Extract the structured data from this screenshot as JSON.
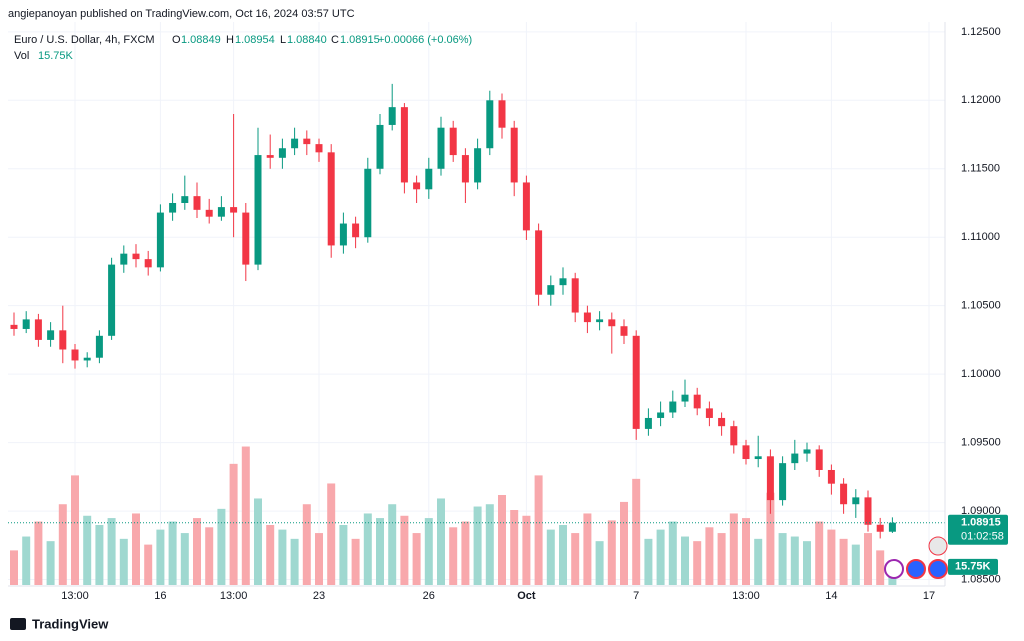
{
  "header": {
    "title": "angiepanoyan published on TradingView.com, Oct 16, 2024 03:57 UTC"
  },
  "footer": {
    "brand": "TradingView"
  },
  "chart_data": {
    "type": "candlestick",
    "symbol": "Euro / U.S. Dollar, 4h, FXCM",
    "legend": {
      "o": "O",
      "o_value": "1.08849",
      "h": "H",
      "h_value": "1.08954",
      "l": "L",
      "l_value": "1.08840",
      "c": "C",
      "c_value": "1.08915",
      "change": "+0.00066 (+0.06%)",
      "vol": "Vol",
      "vol_value": "15.75K"
    },
    "last_price_label": "1.08915",
    "countdown": "01:02:58",
    "volume_label": "15.75K",
    "up_color": "#089981",
    "down_color": "#f23645",
    "volume_up_color": "#9fd8d0",
    "volume_down_color": "#f8a8ac",
    "ylim": [
      1.0846,
      1.1255
    ],
    "yticks": [
      {
        "value": 1.085,
        "label": "1.08500"
      },
      {
        "value": 1.09,
        "label": "1.09000"
      },
      {
        "value": 1.095,
        "label": "1.09500"
      },
      {
        "value": 1.1,
        "label": "1.10000"
      },
      {
        "value": 1.105,
        "label": "1.10500"
      },
      {
        "value": 1.11,
        "label": "1.11000"
      },
      {
        "value": 1.115,
        "label": "1.11500"
      },
      {
        "value": 1.12,
        "label": "1.12000"
      },
      {
        "value": 1.125,
        "label": "1.12500"
      }
    ],
    "vlim": [
      0,
      130
    ],
    "xticks": [
      {
        "candle": 5,
        "label": "13:00"
      },
      {
        "candle": 12,
        "label": "16"
      },
      {
        "candle": 18,
        "label": "13:00"
      },
      {
        "candle": 25,
        "label": "23"
      },
      {
        "candle": 34,
        "label": "26"
      },
      {
        "candle": 42,
        "label": "Oct"
      },
      {
        "candle": 51,
        "label": "7"
      },
      {
        "candle": 60,
        "label": "13:00"
      },
      {
        "candle": 67,
        "label": "14"
      },
      {
        "candle": 75,
        "label": "17"
      }
    ],
    "candles": [
      [
        1.1036,
        1.1045,
        1.1028,
        1.1033
      ],
      [
        1.1033,
        1.1046,
        1.103,
        1.104
      ],
      [
        1.104,
        1.1044,
        1.102,
        1.1025
      ],
      [
        1.1025,
        1.1038,
        1.102,
        1.1032
      ],
      [
        1.1032,
        1.105,
        1.1008,
        1.1018
      ],
      [
        1.1018,
        1.1022,
        1.1004,
        1.101
      ],
      [
        1.101,
        1.1016,
        1.1005,
        1.1012
      ],
      [
        1.1012,
        1.1032,
        1.1008,
        1.1028
      ],
      [
        1.1028,
        1.1085,
        1.1025,
        1.108
      ],
      [
        1.108,
        1.1094,
        1.1074,
        1.1088
      ],
      [
        1.1088,
        1.1095,
        1.1078,
        1.1084
      ],
      [
        1.1084,
        1.109,
        1.1072,
        1.1078
      ],
      [
        1.1078,
        1.1124,
        1.1075,
        1.1118
      ],
      [
        1.1118,
        1.1132,
        1.1112,
        1.1125
      ],
      [
        1.1125,
        1.1145,
        1.112,
        1.113
      ],
      [
        1.113,
        1.114,
        1.1114,
        1.112
      ],
      [
        1.112,
        1.1128,
        1.111,
        1.1115
      ],
      [
        1.1115,
        1.113,
        1.1112,
        1.1122
      ],
      [
        1.1122,
        1.119,
        1.11,
        1.1118
      ],
      [
        1.1118,
        1.1125,
        1.1068,
        1.108
      ],
      [
        1.108,
        1.118,
        1.1076,
        1.116
      ],
      [
        1.116,
        1.1175,
        1.115,
        1.1158
      ],
      [
        1.1158,
        1.1172,
        1.115,
        1.1165
      ],
      [
        1.1165,
        1.118,
        1.116,
        1.1172
      ],
      [
        1.1172,
        1.1178,
        1.116,
        1.1168
      ],
      [
        1.1168,
        1.1172,
        1.1155,
        1.1162
      ],
      [
        1.1162,
        1.1168,
        1.1085,
        1.1094
      ],
      [
        1.1094,
        1.1118,
        1.1088,
        1.111
      ],
      [
        1.111,
        1.1115,
        1.1092,
        1.11
      ],
      [
        1.11,
        1.1158,
        1.1096,
        1.115
      ],
      [
        1.115,
        1.119,
        1.1146,
        1.1182
      ],
      [
        1.1182,
        1.1212,
        1.1178,
        1.1195
      ],
      [
        1.1195,
        1.1198,
        1.1132,
        1.114
      ],
      [
        1.114,
        1.1145,
        1.1125,
        1.1135
      ],
      [
        1.1135,
        1.1158,
        1.1128,
        1.115
      ],
      [
        1.115,
        1.1188,
        1.1145,
        1.118
      ],
      [
        1.118,
        1.1185,
        1.1155,
        1.116
      ],
      [
        1.116,
        1.1165,
        1.1125,
        1.114
      ],
      [
        1.114,
        1.1172,
        1.1135,
        1.1165
      ],
      [
        1.1165,
        1.1207,
        1.116,
        1.12
      ],
      [
        1.12,
        1.1205,
        1.1172,
        1.118
      ],
      [
        1.118,
        1.1185,
        1.113,
        1.114
      ],
      [
        1.114,
        1.1145,
        1.1098,
        1.1105
      ],
      [
        1.1105,
        1.111,
        1.105,
        1.1058
      ],
      [
        1.1058,
        1.1072,
        1.105,
        1.1065
      ],
      [
        1.1065,
        1.1078,
        1.1058,
        1.107
      ],
      [
        1.107,
        1.1074,
        1.1038,
        1.1045
      ],
      [
        1.1045,
        1.105,
        1.103,
        1.1038
      ],
      [
        1.1038,
        1.1046,
        1.1032,
        1.104
      ],
      [
        1.104,
        1.1045,
        1.1015,
        1.1035
      ],
      [
        1.1035,
        1.104,
        1.1022,
        1.1028
      ],
      [
        1.1028,
        1.1032,
        1.0952,
        1.096
      ],
      [
        1.096,
        1.0975,
        1.0955,
        1.0968
      ],
      [
        1.0968,
        1.098,
        1.0962,
        1.0972
      ],
      [
        1.0972,
        1.0988,
        1.0968,
        1.098
      ],
      [
        1.098,
        1.0996,
        1.0976,
        1.0985
      ],
      [
        1.0985,
        1.099,
        1.097,
        1.0975
      ],
      [
        1.0975,
        1.098,
        1.0962,
        1.0968
      ],
      [
        1.0968,
        1.0972,
        1.0955,
        1.0962
      ],
      [
        1.0962,
        1.0966,
        1.0942,
        1.0948
      ],
      [
        1.0948,
        1.0952,
        1.0934,
        1.0938
      ],
      [
        1.0938,
        1.0955,
        1.0932,
        1.094
      ],
      [
        1.094,
        1.0945,
        1.0898,
        1.0908
      ],
      [
        1.0908,
        1.094,
        1.0904,
        1.0935
      ],
      [
        1.0935,
        1.0952,
        1.093,
        1.0942
      ],
      [
        1.0942,
        1.095,
        1.0936,
        1.0945
      ],
      [
        1.0945,
        1.0948,
        1.0925,
        1.093
      ],
      [
        1.093,
        1.0934,
        1.0912,
        1.092
      ],
      [
        1.092,
        1.0924,
        1.0898,
        1.0905
      ],
      [
        1.0905,
        1.0916,
        1.0895,
        1.091
      ],
      [
        1.091,
        1.0915,
        1.0885,
        1.089
      ],
      [
        1.089,
        1.0895,
        1.088,
        1.08849
      ],
      [
        1.08849,
        1.08954,
        1.0884,
        1.08915
      ]
    ],
    "volume": [
      30,
      42,
      55,
      38,
      70,
      95,
      60,
      52,
      58,
      40,
      62,
      35,
      48,
      55,
      45,
      58,
      50,
      66,
      105,
      120,
      75,
      52,
      48,
      40,
      70,
      45,
      88,
      52,
      40,
      62,
      58,
      70,
      60,
      45,
      58,
      75,
      50,
      55,
      68,
      70,
      78,
      65,
      60,
      95,
      48,
      52,
      45,
      62,
      38,
      56,
      72,
      92,
      40,
      48,
      55,
      42,
      38,
      50,
      45,
      62,
      58,
      40,
      80,
      45,
      42,
      38,
      55,
      48,
      40,
      35,
      45,
      30,
      15.75
    ]
  }
}
